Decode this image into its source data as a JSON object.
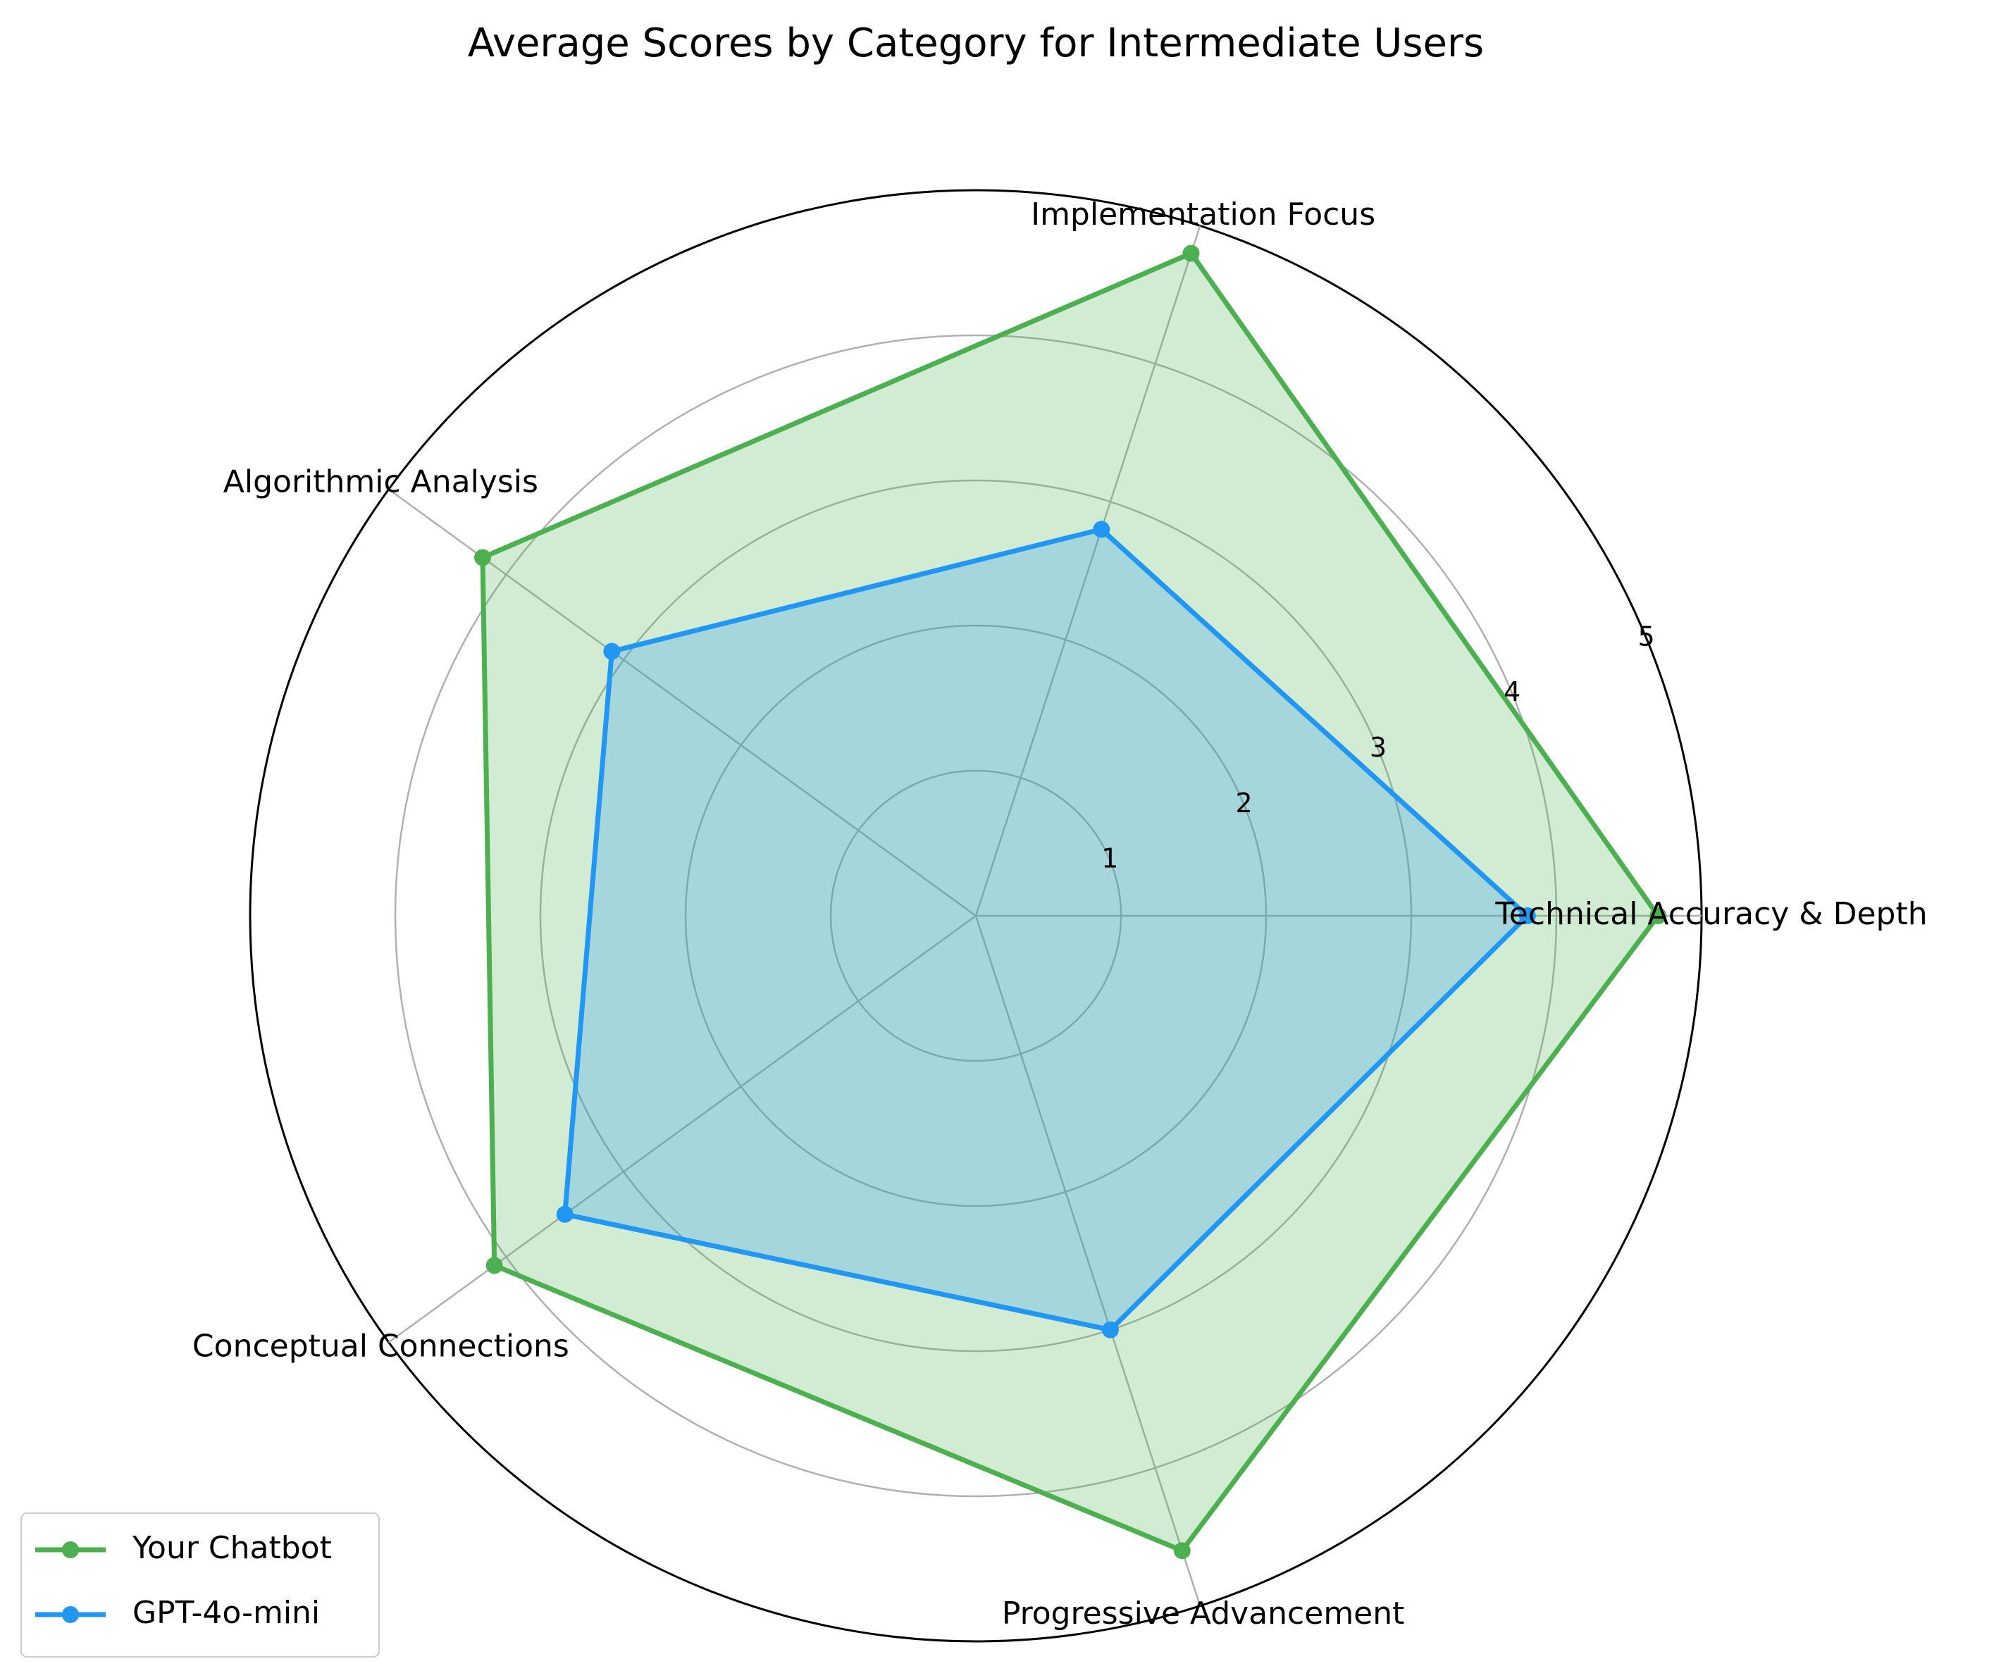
{
  "chart_data": {
    "type": "radar",
    "title": "Average Scores by Category for Intermediate Users",
    "categories": [
      "Technical Accuracy & Depth",
      "Implementation Focus",
      "Algorithmic Analysis",
      "Conceptual Connections",
      "Progressive Advancement"
    ],
    "series": [
      {
        "name": "Your Chatbot",
        "values": [
          4.7,
          4.8,
          4.2,
          4.1,
          4.6
        ],
        "color": "#4CAF50"
      },
      {
        "name": "GPT-4o-mini",
        "values": [
          3.8,
          2.8,
          3.1,
          3.5,
          3.0
        ],
        "color": "#2196F3"
      }
    ],
    "rlim": [
      0,
      5
    ],
    "rticks": [
      "1",
      "2",
      "3",
      "4",
      "5"
    ],
    "grid": true,
    "legend_position": "bottom-left"
  }
}
